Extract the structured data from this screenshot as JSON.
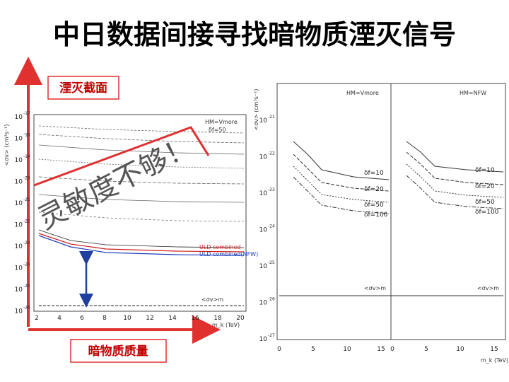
{
  "slide": {
    "title": "中日数据间接寻找暗物质湮灭信号",
    "y_arrow_label": "湮灭截面",
    "x_arrow_label": "暗物质质量",
    "annotation": "灵敏度不够！",
    "left_plot": {
      "y_axis_label": "<σv> (cm³s⁻¹)",
      "x_axis_label": "m_k (TeV)",
      "legend_title": "HM=Vmore",
      "legend_sub": "δf=50",
      "legend_entries": [
        "ULD combined",
        "ULD combined(NFW)"
      ],
      "curve_label": "<σv>m",
      "yticks": [
        {
          "base": "10",
          "exp": "-17"
        },
        {
          "base": "10",
          "exp": "-18"
        },
        {
          "base": "10",
          "exp": "-19"
        },
        {
          "base": "10",
          "exp": "-20"
        },
        {
          "base": "10",
          "exp": "-21"
        },
        {
          "base": "10",
          "exp": "-22"
        },
        {
          "base": "10",
          "exp": "-23"
        },
        {
          "base": "10",
          "exp": "-24"
        },
        {
          "base": "10",
          "exp": "-25"
        },
        {
          "base": "10",
          "exp": "-26"
        }
      ],
      "xticks": [
        "2",
        "4",
        "6",
        "8",
        "10",
        "12",
        "14",
        "16",
        "18",
        "20"
      ]
    },
    "right_plot": {
      "y_axis_label": "<σv> (cm³s⁻¹)",
      "x_axis_label": "m_k (TeV)",
      "panel_titles": [
        "HM=Vmore",
        "HM=NFW"
      ],
      "curve_labels": [
        [
          "δf=10",
          "δf=20",
          "δf=50",
          "δf=100"
        ],
        [
          "δf=10",
          "δf=20",
          "δf=50",
          "δf=100"
        ]
      ],
      "limit_label": "<σv>m",
      "yticks": [
        {
          "base": "10",
          "exp": "-21"
        },
        {
          "base": "10",
          "exp": "-22"
        },
        {
          "base": "10",
          "exp": "-23"
        },
        {
          "base": "10",
          "exp": "-24"
        },
        {
          "base": "10",
          "exp": "-25"
        },
        {
          "base": "10",
          "exp": "-26"
        },
        {
          "base": "10",
          "exp": "-27"
        }
      ],
      "xticks": [
        [
          "0",
          "5",
          "10",
          "15"
        ],
        [
          "0",
          "5",
          "10",
          "15"
        ]
      ]
    }
  }
}
